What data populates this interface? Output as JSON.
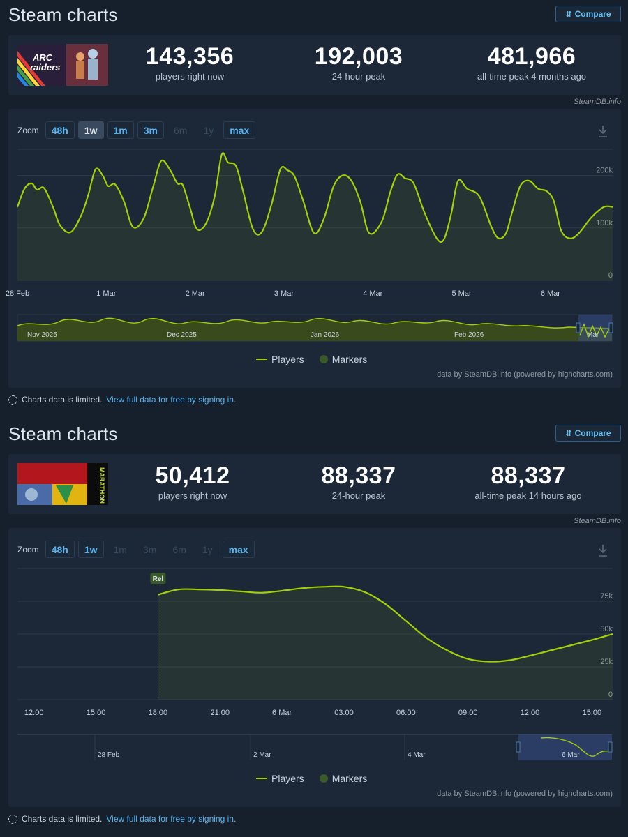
{
  "sections": [
    {
      "title": "Steam charts",
      "compare_label": "Compare",
      "thumb_name": "ARC Raiders",
      "stats": [
        {
          "num": "143,356",
          "label": "players right now"
        },
        {
          "num": "192,003",
          "label": "24-hour peak"
        },
        {
          "num": "481,966",
          "label": "all-time peak 4 months ago"
        }
      ],
      "credit": "SteamDB.info",
      "zoom_label": "Zoom",
      "zoom": [
        {
          "label": "48h",
          "state": "enabled"
        },
        {
          "label": "1w",
          "state": "active"
        },
        {
          "label": "1m",
          "state": "enabled"
        },
        {
          "label": "3m",
          "state": "enabled"
        },
        {
          "label": "6m",
          "state": "disabled"
        },
        {
          "label": "1y",
          "state": "disabled"
        },
        {
          "label": "max",
          "state": "enabled"
        }
      ],
      "legend": {
        "players": "Players",
        "markers": "Markers"
      },
      "footer_credit": "data by SteamDB.info (powered by highcharts.com)",
      "navigator_labels": [
        "Nov 2025",
        "Dec 2025",
        "Jan 2026",
        "Feb 2026",
        "Mar"
      ]
    },
    {
      "title": "Steam charts",
      "compare_label": "Compare",
      "thumb_name": "Marathon",
      "stats": [
        {
          "num": "50,412",
          "label": "players right now"
        },
        {
          "num": "88,337",
          "label": "24-hour peak"
        },
        {
          "num": "88,337",
          "label": "all-time peak 14 hours ago"
        }
      ],
      "credit": "SteamDB.info",
      "zoom_label": "Zoom",
      "zoom": [
        {
          "label": "48h",
          "state": "enabled"
        },
        {
          "label": "1w",
          "state": "enabled"
        },
        {
          "label": "1m",
          "state": "disabled"
        },
        {
          "label": "3m",
          "state": "disabled"
        },
        {
          "label": "6m",
          "state": "disabled"
        },
        {
          "label": "1y",
          "state": "disabled"
        },
        {
          "label": "max",
          "state": "enabled"
        }
      ],
      "legend": {
        "players": "Players",
        "markers": "Markers"
      },
      "footer_credit": "data by SteamDB.info (powered by highcharts.com)",
      "marker_label": "Rel",
      "navigator_labels": [
        "28 Feb",
        "2 Mar",
        "4 Mar",
        "6 Mar"
      ]
    }
  ],
  "limited": {
    "text": "Charts data is limited.",
    "link": "View full data for free by signing in."
  },
  "colors": {
    "line": "#a4d007",
    "link": "#58b3f0",
    "panel": "#1c2838",
    "bg": "#16202d"
  },
  "chart_data": [
    {
      "type": "line",
      "ylim": [
        0,
        250000
      ],
      "yticks": [
        {
          "v": 0,
          "label": "0"
        },
        {
          "v": 100000,
          "label": "100k"
        },
        {
          "v": 200000,
          "label": "200k"
        }
      ],
      "xticks": [
        {
          "x": 0.5,
          "label": "28 Feb"
        },
        {
          "x": 1.5,
          "label": "1 Mar"
        },
        {
          "x": 2.5,
          "label": "2 Mar"
        },
        {
          "x": 3.5,
          "label": "3 Mar"
        },
        {
          "x": 4.5,
          "label": "4 Mar"
        },
        {
          "x": 5.5,
          "label": "5 Mar"
        },
        {
          "x": 6.5,
          "label": "6 Mar"
        }
      ],
      "xlim": [
        0.5,
        7.2
      ],
      "series": [
        {
          "name": "Players",
          "x": [
            0.5,
            0.58,
            0.66,
            0.72,
            0.8,
            0.9,
            0.98,
            1.1,
            1.22,
            1.3,
            1.38,
            1.46,
            1.52,
            1.6,
            1.7,
            1.8,
            1.92,
            2.03,
            2.12,
            2.22,
            2.3,
            2.36,
            2.44,
            2.52,
            2.62,
            2.72,
            2.8,
            2.87,
            2.96,
            3.04,
            3.15,
            3.25,
            3.36,
            3.46,
            3.54,
            3.62,
            3.72,
            3.84,
            3.95,
            4.06,
            4.16,
            4.26,
            4.36,
            4.46,
            4.6,
            4.7,
            4.78,
            4.86,
            4.96,
            5.08,
            5.22,
            5.3,
            5.38,
            5.46,
            5.56,
            5.7,
            5.84,
            5.92,
            6.0,
            6.06,
            6.16,
            6.26,
            6.36,
            6.46,
            6.54,
            6.62,
            6.72,
            6.82,
            6.96,
            7.1,
            7.2
          ],
          "y": [
            140000,
            175000,
            185000,
            173000,
            176000,
            140000,
            105000,
            92000,
            125000,
            165000,
            212000,
            200000,
            180000,
            183000,
            150000,
            102000,
            118000,
            180000,
            228000,
            210000,
            185000,
            182000,
            140000,
            98000,
            108000,
            160000,
            240000,
            225000,
            218000,
            170000,
            98000,
            92000,
            145000,
            212000,
            210000,
            198000,
            150000,
            90000,
            118000,
            180000,
            200000,
            190000,
            150000,
            90000,
            112000,
            170000,
            202000,
            195000,
            185000,
            130000,
            80000,
            78000,
            125000,
            190000,
            175000,
            160000,
            100000,
            80000,
            90000,
            125000,
            180000,
            190000,
            175000,
            170000,
            150000,
            95000,
            80000,
            90000,
            120000,
            140000,
            140000
          ]
        }
      ]
    },
    {
      "type": "line",
      "ylim": [
        0,
        100000
      ],
      "yticks": [
        {
          "v": 0,
          "label": "0"
        },
        {
          "v": 25000,
          "label": "25k"
        },
        {
          "v": 50000,
          "label": "50k"
        },
        {
          "v": 75000,
          "label": "75k"
        }
      ],
      "xticks": [
        {
          "x": 0,
          "label": "12:00"
        },
        {
          "x": 3,
          "label": "15:00"
        },
        {
          "x": 6,
          "label": "18:00"
        },
        {
          "x": 9,
          "label": "21:00"
        },
        {
          "x": 12,
          "label": "6 Mar"
        },
        {
          "x": 15,
          "label": "03:00"
        },
        {
          "x": 18,
          "label": "06:00"
        },
        {
          "x": 21,
          "label": "09:00"
        },
        {
          "x": 24,
          "label": "12:00"
        },
        {
          "x": 27,
          "label": "15:00"
        }
      ],
      "xlim": [
        -0.8,
        28.0
      ],
      "series": [
        {
          "name": "Players",
          "x": [
            6,
            7,
            8,
            9,
            10,
            11,
            12,
            13,
            14,
            15,
            16,
            17,
            18,
            19,
            20,
            21,
            22,
            23,
            24,
            25,
            26,
            27,
            28
          ],
          "y": [
            80000,
            84000,
            84000,
            83500,
            82500,
            81500,
            83000,
            85000,
            86000,
            86000,
            82000,
            73000,
            60000,
            47000,
            37500,
            31000,
            29000,
            30000,
            33500,
            37500,
            41500,
            45500,
            50000
          ]
        }
      ],
      "markers": [
        {
          "x": 6,
          "label": "Rel"
        }
      ]
    }
  ]
}
